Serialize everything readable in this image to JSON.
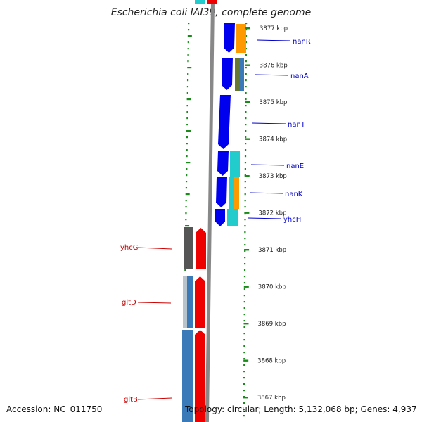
{
  "title": "Escherichia coli IAI39, complete genome",
  "footer": {
    "accession": "Accession: NC_011750",
    "stats": "Topology: circular; Length: 5,132,068 bp; Genes: 4,937"
  },
  "kbp_labels": [
    {
      "text": "3877 kbp",
      "kbp": 3877
    },
    {
      "text": "3876 kbp",
      "kbp": 3876
    },
    {
      "text": "3875 kbp",
      "kbp": 3875
    },
    {
      "text": "3874 kbp",
      "kbp": 3874
    },
    {
      "text": "3873 kbp",
      "kbp": 3873
    },
    {
      "text": "3872 kbp",
      "kbp": 3872
    },
    {
      "text": "3871 kbp",
      "kbp": 3871
    },
    {
      "text": "3870 kbp",
      "kbp": 3870
    },
    {
      "text": "3869 kbp",
      "kbp": 3869
    },
    {
      "text": "3868 kbp",
      "kbp": 3868
    },
    {
      "text": "3867 kbp",
      "kbp": 3867
    }
  ],
  "gene_labels_right": [
    {
      "name": "nanR",
      "color": "#0000cc"
    },
    {
      "name": "nanA",
      "color": "#0000cc"
    },
    {
      "name": "nanT",
      "color": "#0000cc"
    },
    {
      "name": "nanE",
      "color": "#0000cc"
    },
    {
      "name": "nanK",
      "color": "#0000cc"
    },
    {
      "name": "yhcH",
      "color": "#0000cc"
    }
  ],
  "gene_labels_left": [
    {
      "name": "yhcG",
      "color": "#cc0000"
    },
    {
      "name": "gltD",
      "color": "#cc0000"
    },
    {
      "name": "gltB",
      "color": "#cc0000"
    }
  ],
  "colors": {
    "backbone": "#888888",
    "tick_green": "#1a8a1a",
    "gene_blue": "#0000ee",
    "gene_red": "#ee0000",
    "cog_orange": "#ff9900",
    "cog_cyan": "#22cccc",
    "cog_olive": "#667733",
    "cog_steel": "#3a7ab8",
    "cog_gray": "#555555"
  }
}
